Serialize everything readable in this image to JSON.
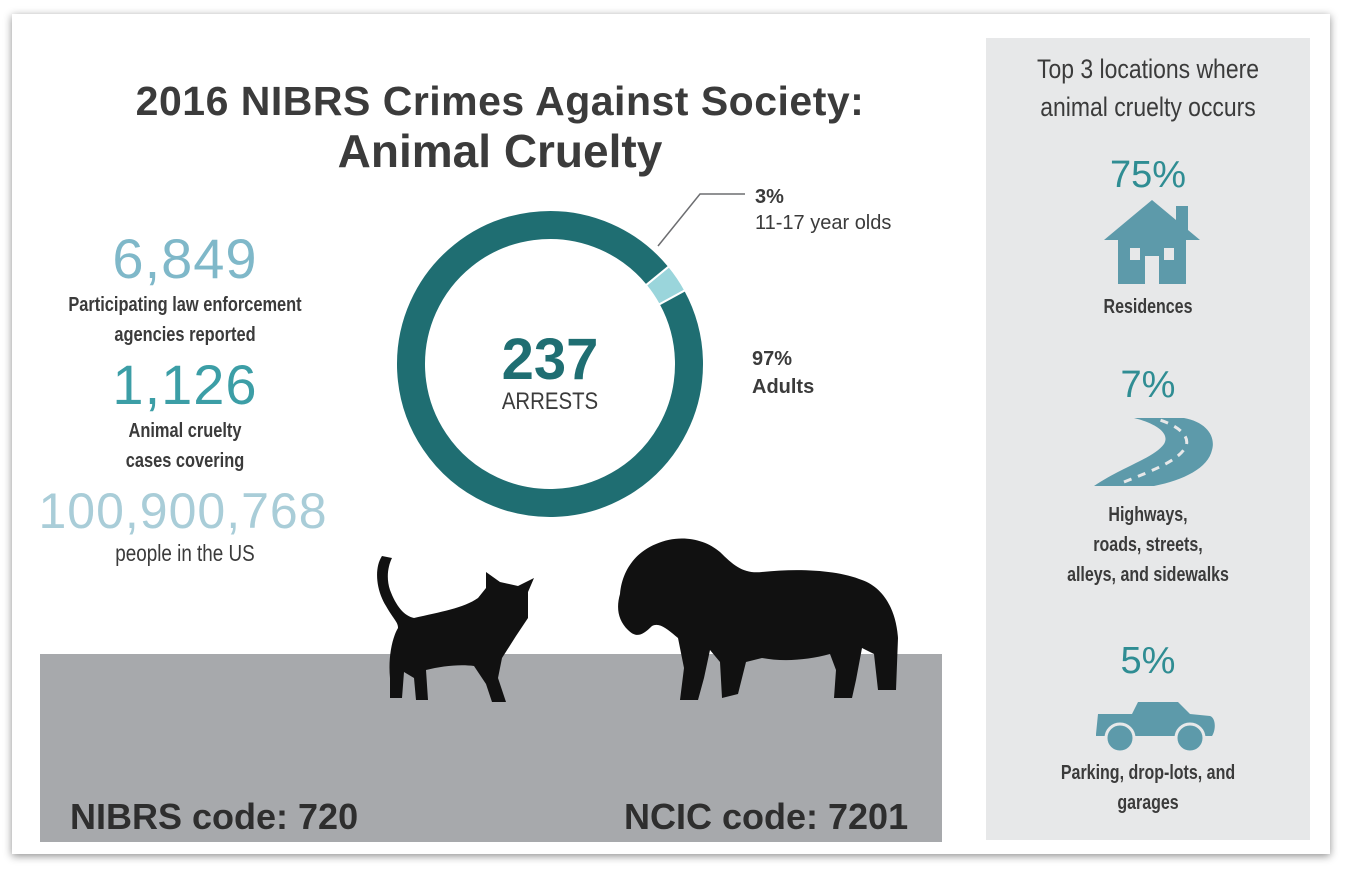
{
  "title": {
    "line1": "2016 NIBRS Crimes Against Society:",
    "line2": "Animal Cruelty"
  },
  "stats": [
    {
      "value": "6,849",
      "label_lines": [
        "Participating law enforcement",
        "agencies reported"
      ],
      "color": "#7fb8c9"
    },
    {
      "value": "1,126",
      "label_lines": [
        "Animal cruelty",
        "cases covering"
      ],
      "color": "#3c9ea6"
    },
    {
      "value": "100,900,768",
      "label_lines": [
        "people in the US"
      ],
      "color": "#a9cdd8"
    }
  ],
  "chart_data": {
    "type": "pie",
    "title": "",
    "center_value": "237",
    "center_label": "ARRESTS",
    "slices": [
      {
        "name": "Adults",
        "pct_label": "97%",
        "value": 97,
        "color": "#1f6e72"
      },
      {
        "name": "11-17 year olds",
        "pct_label": "3%",
        "value": 3,
        "color": "#9ad5db"
      }
    ]
  },
  "codes": {
    "nibrs": "NIBRS code: 720",
    "ncic": "NCIC code: 7201"
  },
  "sidebar": {
    "title_lines": [
      "Top 3 locations where",
      "animal cruelty occurs"
    ],
    "locations": [
      {
        "pct": "75%",
        "label_lines": [
          "Residences"
        ],
        "icon": "house-icon"
      },
      {
        "pct": "7%",
        "label_lines": [
          "Highways,",
          "roads, streets,",
          "alleys, and sidewalks"
        ],
        "icon": "road-icon"
      },
      {
        "pct": "5%",
        "label_lines": [
          "Parking, drop-lots, and",
          "garages"
        ],
        "icon": "car-icon"
      }
    ]
  },
  "colors": {
    "teal_dark": "#1f6e72",
    "teal_light": "#9ad5db",
    "icon": "#5d9aaa",
    "ground": "#a7a9ac",
    "sidebar_bg": "#e7e8e9"
  }
}
